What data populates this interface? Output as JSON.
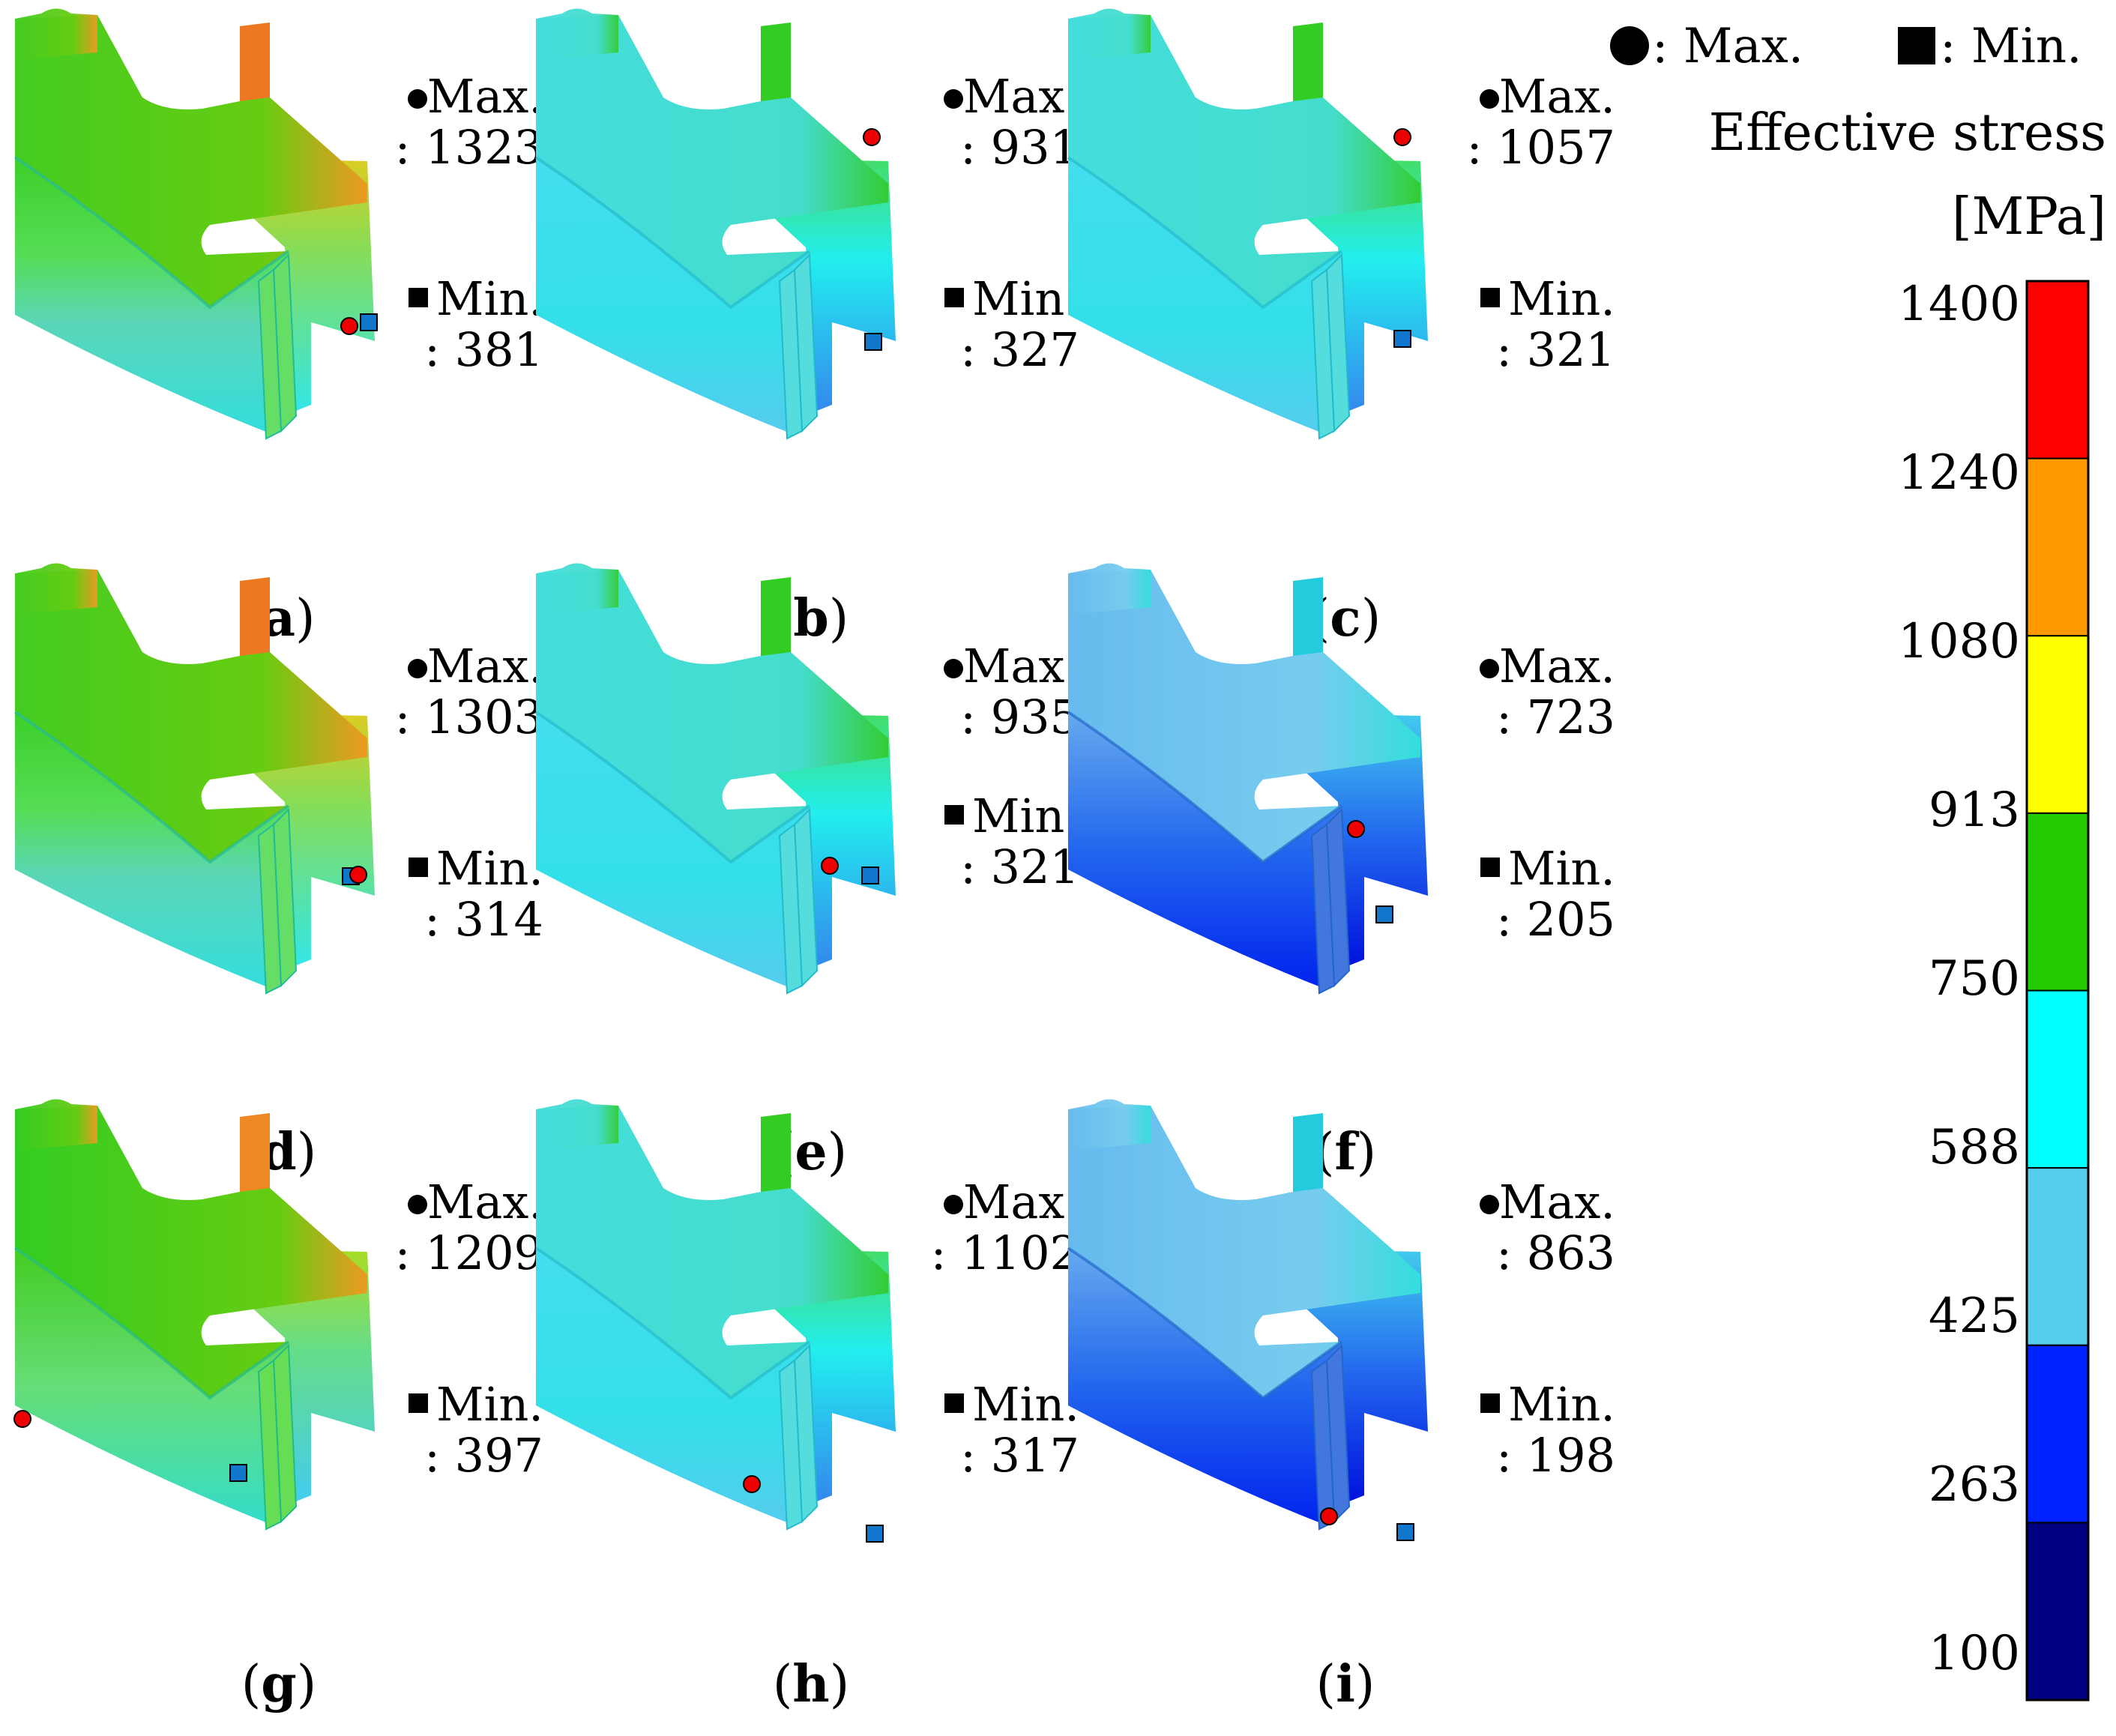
{
  "legend": {
    "max_marker_label": ": Max.",
    "min_marker_label": ": Min."
  },
  "colorbar": {
    "title_line1": "Effective stress",
    "title_line2": "[MPa]",
    "ticks": [
      "1400",
      "1240",
      "1080",
      "913",
      "750",
      "588",
      "425",
      "263",
      "100"
    ],
    "colors": [
      "#ff0000",
      "#ff9900",
      "#ffff00",
      "#22cc00",
      "#00ffff",
      "#55ccee",
      "#0022ff",
      "#000080"
    ]
  },
  "panels": [
    {
      "id": "a",
      "caption_open": "(",
      "caption_letter": "a",
      "caption_close": ")",
      "max_label": "Max.",
      "max_value": ": 1323",
      "min_label": "Min.",
      "min_value": ": 381",
      "theme": "warm"
    },
    {
      "id": "b",
      "caption_open": "(",
      "caption_letter": "b",
      "caption_close": ")",
      "max_label": "Max.",
      "max_value": ": 931",
      "min_label": "Min.",
      "min_value": ": 327",
      "theme": "cyan"
    },
    {
      "id": "c",
      "caption_open": "(",
      "caption_letter": "c",
      "caption_close": ")",
      "max_label": "Max.",
      "max_value": ": 1057",
      "min_label": "Min.",
      "min_value": ": 321",
      "theme": "cyan"
    },
    {
      "id": "d",
      "caption_open": "(",
      "caption_letter": "d",
      "caption_close": ")",
      "max_label": "Max.",
      "max_value": ": 1303",
      "min_label": "Min.",
      "min_value": ": 314",
      "theme": "warm"
    },
    {
      "id": "e",
      "caption_open": "(",
      "caption_letter": "e",
      "caption_close": ")",
      "max_label": "Max.",
      "max_value": ": 935",
      "min_label": "Min.",
      "min_value": ": 321",
      "theme": "cyan"
    },
    {
      "id": "f",
      "caption_open": "(",
      "caption_letter": "f",
      "caption_close": ")",
      "max_label": "Max.",
      "max_value": ": 723",
      "min_label": "Min.",
      "min_value": ": 205",
      "theme": "blue"
    },
    {
      "id": "g",
      "caption_open": "(",
      "caption_letter": "g",
      "caption_close": ")",
      "max_label": "Max.",
      "max_value": ": 1209",
      "min_label": "Min.",
      "min_value": ": 397",
      "theme": "green"
    },
    {
      "id": "h",
      "caption_open": "(",
      "caption_letter": "h",
      "caption_close": ")",
      "max_label": "Max.",
      "max_value": ": 1102",
      "min_label": "Min.",
      "min_value": ": 317",
      "theme": "cyan"
    },
    {
      "id": "i",
      "caption_open": "(",
      "caption_letter": "i",
      "caption_close": ")",
      "max_label": "Max.",
      "max_value": ": 863",
      "min_label": "Min.",
      "min_value": ": 198",
      "theme": "blue"
    }
  ]
}
